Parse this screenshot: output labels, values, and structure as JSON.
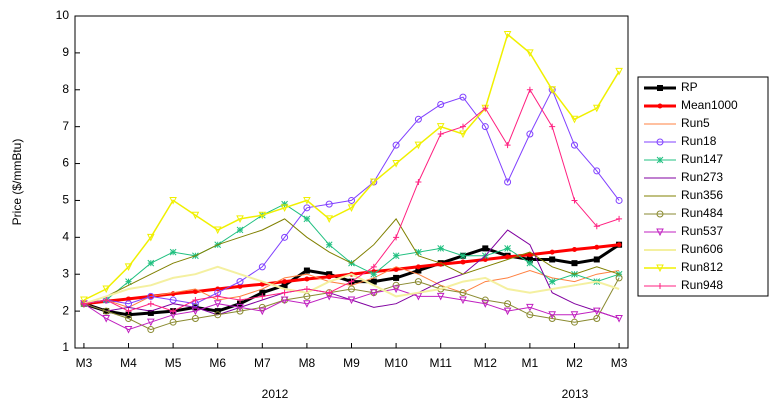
{
  "chart_data": {
    "type": "line",
    "ylabel": "Price ($/mmBtu)",
    "x": [
      0,
      0.5,
      1,
      1.5,
      2,
      2.5,
      3,
      3.5,
      4,
      4.5,
      5,
      5.5,
      6,
      6.5,
      7,
      7.5,
      8,
      8.5,
      9,
      9.5,
      10,
      10.5,
      11,
      11.5,
      12
    ],
    "xlim": [
      -0.2,
      12.2
    ],
    "xticks": [
      {
        "value": 0,
        "label": "M3"
      },
      {
        "value": 1,
        "label": "M4"
      },
      {
        "value": 2,
        "label": "M5"
      },
      {
        "value": 3,
        "label": "M6"
      },
      {
        "value": 4,
        "label": "M7"
      },
      {
        "value": 5,
        "label": "M8"
      },
      {
        "value": 6,
        "label": "M9"
      },
      {
        "value": 7,
        "label": "M10"
      },
      {
        "value": 8,
        "label": "M11"
      },
      {
        "value": 9,
        "label": "M12"
      },
      {
        "value": 10,
        "label": "M1"
      },
      {
        "value": 11,
        "label": "M2"
      },
      {
        "value": 12,
        "label": "M3"
      }
    ],
    "x_group_labels": [
      "2012",
      "2013"
    ],
    "ylim": [
      1,
      10
    ],
    "yticks": [
      1,
      2,
      3,
      4,
      5,
      6,
      7,
      8,
      9,
      10
    ],
    "legend": "right",
    "series": [
      {
        "name": "RP",
        "color": "#000000",
        "marker": "square",
        "width": 3,
        "values": [
          2.2,
          2.0,
          1.9,
          1.95,
          2.0,
          2.1,
          2.0,
          2.2,
          2.5,
          2.7,
          3.1,
          3.0,
          2.8,
          2.8,
          2.9,
          3.1,
          3.3,
          3.5,
          3.7,
          3.5,
          3.4,
          3.4,
          3.3,
          3.4,
          3.8
        ]
      },
      {
        "name": "Mean1000",
        "color": "#ff0000",
        "marker": "dot",
        "width": 3,
        "values": [
          2.2,
          2.27,
          2.33,
          2.4,
          2.47,
          2.53,
          2.6,
          2.67,
          2.73,
          2.8,
          2.87,
          2.93,
          3.0,
          3.07,
          3.13,
          3.2,
          3.27,
          3.33,
          3.4,
          3.47,
          3.53,
          3.6,
          3.67,
          3.73,
          3.8
        ]
      },
      {
        "name": "Run5",
        "color": "#ff8040",
        "marker": "none",
        "width": 1,
        "values": [
          2.2,
          2.3,
          2.1,
          2.4,
          2.5,
          2.6,
          2.3,
          2.4,
          2.6,
          2.9,
          3.0,
          2.8,
          2.7,
          2.9,
          3.2,
          3.0,
          2.7,
          2.5,
          2.8,
          2.9,
          3.1,
          2.9,
          2.8,
          3.0,
          3.1
        ]
      },
      {
        "name": "Run18",
        "color": "#8040ff",
        "marker": "circle",
        "width": 1,
        "values": [
          2.2,
          2.3,
          2.2,
          2.4,
          2.3,
          2.2,
          2.5,
          2.8,
          3.2,
          4.0,
          4.8,
          4.9,
          5.0,
          5.5,
          6.5,
          7.2,
          7.6,
          7.8,
          7.0,
          5.5,
          6.8,
          8.0,
          6.5,
          5.8,
          5.0
        ]
      },
      {
        "name": "Run147",
        "color": "#20c080",
        "marker": "star",
        "width": 1,
        "values": [
          2.2,
          2.3,
          2.8,
          3.3,
          3.6,
          3.5,
          3.8,
          4.2,
          4.6,
          4.9,
          4.5,
          3.8,
          3.3,
          3.0,
          3.5,
          3.6,
          3.7,
          3.5,
          3.5,
          3.7,
          3.3,
          2.8,
          3.0,
          2.8,
          3.0
        ]
      },
      {
        "name": "Run273",
        "color": "#8000a0",
        "marker": "none",
        "width": 1,
        "values": [
          2.2,
          2.0,
          2.1,
          2.0,
          2.2,
          2.1,
          1.9,
          2.1,
          2.3,
          2.5,
          2.6,
          2.5,
          2.3,
          2.1,
          2.2,
          2.5,
          2.8,
          3.0,
          3.5,
          4.2,
          3.8,
          2.5,
          2.2,
          2.0,
          1.8
        ]
      },
      {
        "name": "Run356",
        "color": "#808000",
        "marker": "none",
        "width": 1,
        "values": [
          2.2,
          2.4,
          2.7,
          3.0,
          3.3,
          3.5,
          3.8,
          4.0,
          4.2,
          4.5,
          4.0,
          3.6,
          3.3,
          3.8,
          4.5,
          3.5,
          3.3,
          3.0,
          3.2,
          3.4,
          3.6,
          3.2,
          3.0,
          3.2,
          3.0
        ]
      },
      {
        "name": "Run484",
        "color": "#8a8a30",
        "marker": "circle",
        "width": 1,
        "values": [
          2.2,
          2.0,
          1.8,
          1.5,
          1.7,
          1.8,
          1.9,
          2.0,
          2.1,
          2.3,
          2.4,
          2.5,
          2.6,
          2.5,
          2.7,
          2.8,
          2.6,
          2.5,
          2.3,
          2.2,
          1.9,
          1.8,
          1.7,
          1.8,
          2.9
        ]
      },
      {
        "name": "Run537",
        "color": "#c020c0",
        "marker": "triangle",
        "width": 1,
        "values": [
          2.2,
          1.8,
          1.5,
          1.7,
          1.9,
          2.0,
          2.2,
          2.1,
          2.0,
          2.3,
          2.2,
          2.4,
          2.3,
          2.5,
          2.6,
          2.4,
          2.4,
          2.3,
          2.2,
          2.0,
          2.1,
          1.9,
          1.9,
          2.0,
          1.8
        ]
      },
      {
        "name": "Run606",
        "color": "#f4f0a0",
        "marker": "none",
        "width": 2,
        "values": [
          2.2,
          2.4,
          2.6,
          2.7,
          2.9,
          3.0,
          3.2,
          3.0,
          2.8,
          2.6,
          2.5,
          2.8,
          3.0,
          2.7,
          2.4,
          2.5,
          2.6,
          2.8,
          2.9,
          2.6,
          2.5,
          2.6,
          2.7,
          2.8,
          2.6
        ]
      },
      {
        "name": "Run812",
        "color": "#f0f000",
        "marker": "triangle",
        "width": 1.5,
        "values": [
          2.3,
          2.6,
          3.2,
          4.0,
          5.0,
          4.6,
          4.2,
          4.5,
          4.6,
          4.8,
          5.0,
          4.5,
          4.8,
          5.5,
          6.0,
          6.5,
          7.0,
          6.8,
          7.5,
          9.5,
          9.0,
          8.0,
          7.2,
          7.5,
          8.5
        ]
      },
      {
        "name": "Run948",
        "color": "#ff2080",
        "marker": "plus",
        "width": 1,
        "values": [
          2.2,
          2.3,
          2.0,
          2.2,
          2.0,
          2.3,
          2.4,
          2.3,
          2.4,
          2.5,
          2.6,
          2.5,
          2.8,
          3.2,
          4.0,
          5.5,
          6.8,
          7.0,
          7.5,
          6.5,
          8.0,
          7.0,
          5.0,
          4.3,
          4.5
        ]
      }
    ]
  }
}
